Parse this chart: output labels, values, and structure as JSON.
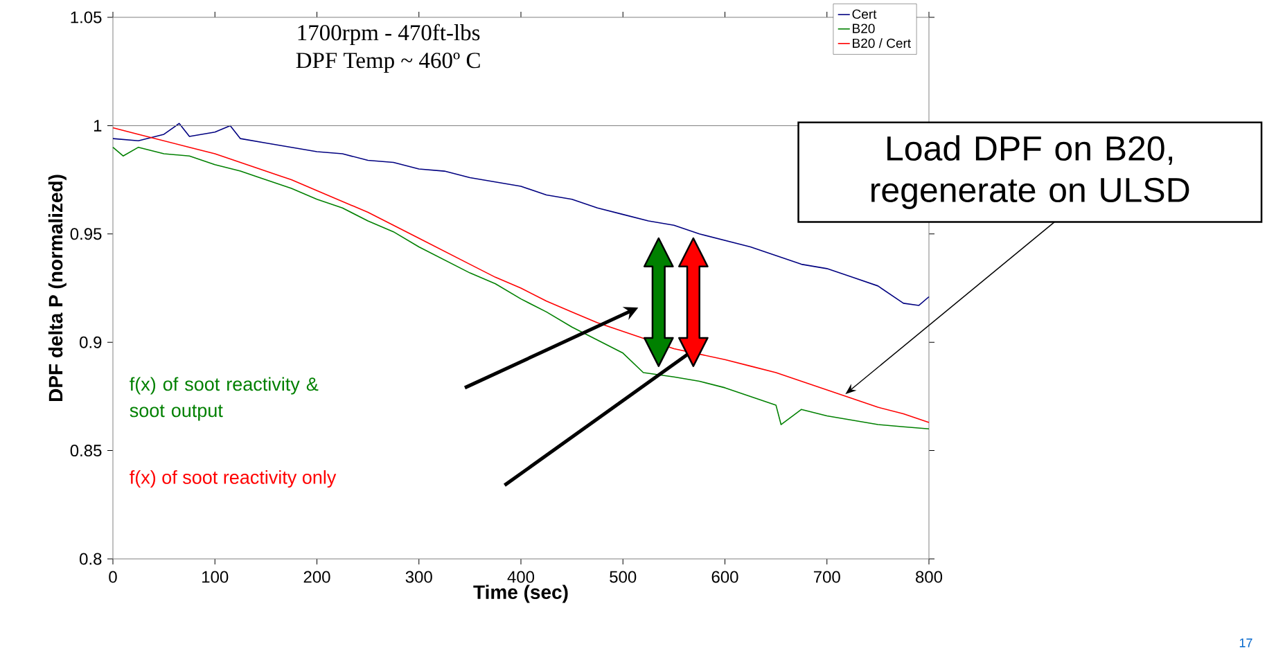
{
  "chart_data": {
    "type": "line",
    "title": "1700rpm - 470ft-lbs",
    "subtitle": "DPF Temp ~ 460º C",
    "xlabel": "Time (sec)",
    "ylabel": "DPF delta P (normalized)",
    "xlim": [
      0,
      800
    ],
    "xticks": [
      0,
      100,
      200,
      300,
      400,
      500,
      600,
      700,
      800
    ],
    "ylim": [
      0.8,
      1.05
    ],
    "yticks": [
      {
        "value": 0.8,
        "label": "0.8"
      },
      0.85,
      {
        "value": 0.9,
        "label": "0.9"
      },
      0.95,
      {
        "value": 1,
        "label": "1"
      },
      1.05
    ],
    "legend": "top right",
    "marker": "none",
    "line_style": "solid",
    "ref_lines": [
      {
        "axis": "y",
        "value": 1,
        "color": "#808080"
      }
    ],
    "annotations": [
      "Load DPF on B20, regenerate on ULSD",
      "f(x) of soot reactivity & soot output",
      "f(x) of soot reactivity only",
      "17"
    ],
    "series": [
      {
        "name": "Cert",
        "color": "#000080",
        "x": [
          0,
          25,
          50,
          65,
          75,
          100,
          115,
          125,
          150,
          175,
          200,
          225,
          250,
          275,
          300,
          325,
          350,
          375,
          400,
          425,
          450,
          475,
          500,
          525,
          550,
          575,
          600,
          625,
          650,
          675,
          700,
          725,
          750,
          775,
          790,
          800
        ],
        "values": [
          0.994,
          0.993,
          0.996,
          1.001,
          0.995,
          0.997,
          1.0,
          0.994,
          0.992,
          0.99,
          0.988,
          0.987,
          0.984,
          0.983,
          0.98,
          0.979,
          0.976,
          0.974,
          0.972,
          0.968,
          0.966,
          0.962,
          0.959,
          0.956,
          0.954,
          0.95,
          0.947,
          0.944,
          0.94,
          0.936,
          0.934,
          0.93,
          0.926,
          0.918,
          0.917,
          0.921
        ]
      },
      {
        "name": "B20",
        "color": "#008000",
        "x": [
          0,
          10,
          25,
          50,
          75,
          100,
          125,
          150,
          175,
          200,
          225,
          250,
          275,
          300,
          325,
          350,
          375,
          400,
          425,
          450,
          475,
          500,
          520,
          550,
          575,
          600,
          625,
          650,
          655,
          675,
          700,
          725,
          750,
          775,
          800
        ],
        "values": [
          0.99,
          0.986,
          0.99,
          0.987,
          0.986,
          0.982,
          0.979,
          0.975,
          0.971,
          0.966,
          0.962,
          0.956,
          0.951,
          0.944,
          0.938,
          0.932,
          0.927,
          0.92,
          0.914,
          0.907,
          0.901,
          0.895,
          0.886,
          0.884,
          0.882,
          0.879,
          0.875,
          0.871,
          0.862,
          0.869,
          0.866,
          0.864,
          0.862,
          0.861,
          0.86
        ]
      },
      {
        "name": "B20 / Cert",
        "color": "#ff0000",
        "x": [
          0,
          25,
          50,
          75,
          100,
          125,
          150,
          175,
          200,
          225,
          250,
          275,
          300,
          325,
          350,
          375,
          400,
          425,
          450,
          475,
          500,
          550,
          600,
          625,
          650,
          675,
          700,
          725,
          750,
          775,
          800
        ],
        "values": [
          0.999,
          0.996,
          0.993,
          0.99,
          0.987,
          0.983,
          0.979,
          0.975,
          0.97,
          0.965,
          0.96,
          0.954,
          0.948,
          0.942,
          0.936,
          0.93,
          0.925,
          0.919,
          0.914,
          0.909,
          0.905,
          0.897,
          0.892,
          0.889,
          0.886,
          0.882,
          0.878,
          0.874,
          0.87,
          0.867,
          0.863
        ]
      }
    ]
  }
}
